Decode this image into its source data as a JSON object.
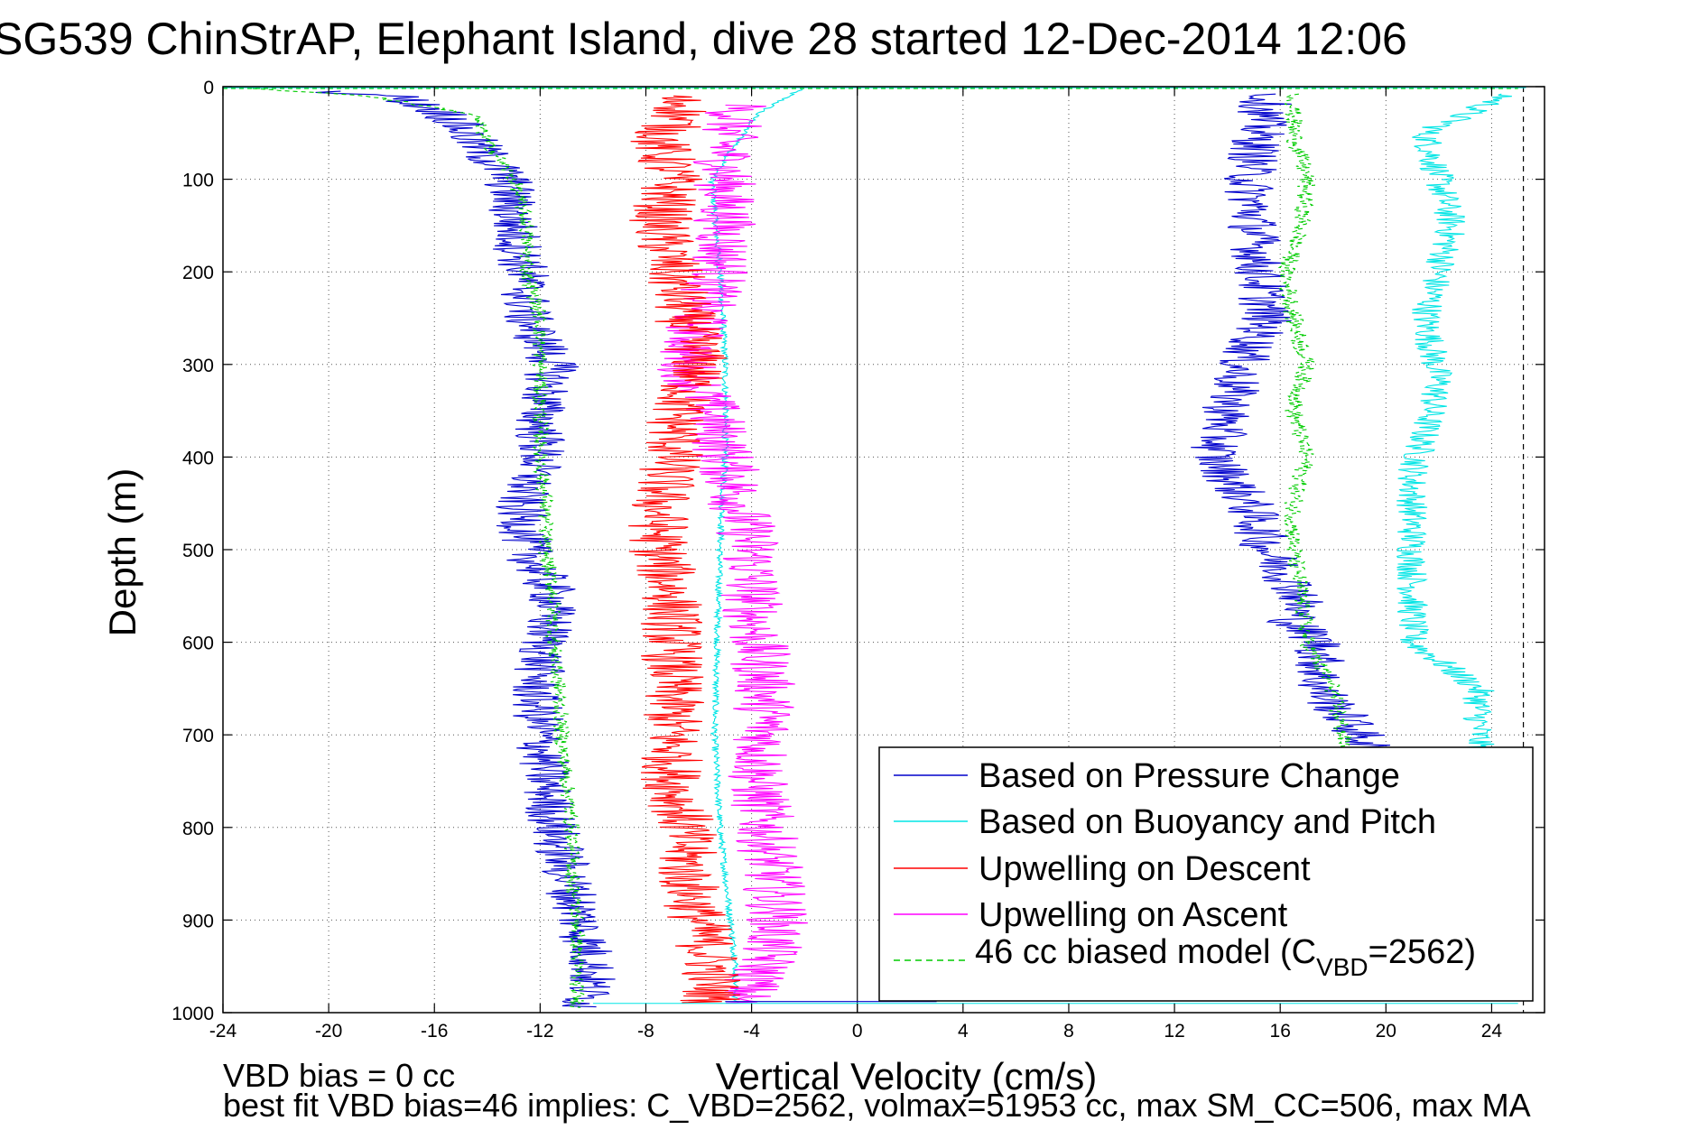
{
  "chart_data": {
    "type": "line",
    "title": "SG539 ChinStrAP, Elephant Island, dive 28 started 12-Dec-2014 12:06",
    "xlabel": "Vertical Velocity (cm/s)",
    "ylabel": "Depth (m)",
    "xlim": [
      -24,
      26
    ],
    "ylim": [
      0,
      1000
    ],
    "y_reversed": true,
    "grid": "dotted",
    "xticks": [
      -24,
      -20,
      -16,
      -12,
      -8,
      -4,
      0,
      4,
      8,
      12,
      16,
      20,
      24
    ],
    "yticks": [
      0,
      100,
      200,
      300,
      400,
      500,
      600,
      700,
      800,
      900,
      1000
    ],
    "legend_position": "bottom-right",
    "series": [
      {
        "name": "Based on Pressure Change",
        "color": "#0000cc",
        "depth": [
          0,
          10,
          30,
          60,
          100,
          150,
          200,
          250,
          300,
          350,
          400,
          450,
          500,
          550,
          600,
          650,
          700,
          750,
          800,
          850,
          900,
          950,
          990
        ],
        "descent": [
          -23,
          -17.5,
          -15.5,
          -14.5,
          -13.2,
          -13.0,
          -12.6,
          -12.5,
          -11.5,
          -12.0,
          -12.0,
          -12.8,
          -12.5,
          -11.5,
          -11.8,
          -12.2,
          -12.0,
          -11.8,
          -11.5,
          -11.0,
          -10.5,
          -10.0,
          -10.3
        ],
        "ascent": [
          15.5,
          15.2,
          14.8,
          15.0,
          15.2,
          15.5,
          14.5,
          14.0,
          13.5,
          14.8,
          15.5,
          16.8,
          16.5,
          17.5,
          17.5,
          19.0,
          19.5
        ],
        "ascent_depth": [
          10,
          50,
          100,
          150,
          200,
          250,
          300,
          350,
          400,
          450,
          500,
          550,
          580,
          600,
          650,
          700,
          720
        ]
      },
      {
        "name": "Based on Buoyancy and Pitch",
        "color": "#00e5e5",
        "depth": [
          0,
          30,
          100,
          200,
          300,
          400,
          500,
          600,
          700,
          800,
          900,
          950,
          990
        ],
        "descent": [
          -2.0,
          -3.8,
          -5.5,
          -5.2,
          -5.0,
          -5.0,
          -5.2,
          -5.3,
          -5.4,
          -5.2,
          -4.8,
          -4.6,
          -4.6
        ],
        "ascent": [
          24.5,
          21.5,
          22.5,
          21.5,
          22.0,
          21.0,
          21.0,
          21.0,
          23.5,
          23.5
        ],
        "ascent_depth": [
          10,
          50,
          150,
          250,
          320,
          420,
          500,
          600,
          650,
          720
        ]
      },
      {
        "name": "Upwelling on Descent",
        "color": "#ff0000",
        "depth": [
          0,
          20,
          60,
          100,
          150,
          200,
          250,
          300,
          350,
          400,
          450,
          500,
          550,
          600,
          650,
          700,
          750,
          800,
          850,
          900,
          950,
          990
        ],
        "values": [
          -8.0,
          -6.5,
          -7.5,
          -7.0,
          -7.5,
          -7.0,
          -6.5,
          -6.0,
          -6.8,
          -7.0,
          -7.5,
          -7.5,
          -7.0,
          -7.0,
          -7.0,
          -7.0,
          -7.0,
          -6.5,
          -6.5,
          -6.0,
          -5.5,
          -5.5
        ]
      },
      {
        "name": "Upwelling on Ascent",
        "color": "#ff00ff",
        "depth": [
          20,
          60,
          100,
          150,
          200,
          250,
          300,
          350,
          400,
          450,
          500,
          550,
          600,
          650,
          700,
          750,
          800,
          850,
          900,
          950,
          990
        ],
        "values": [
          -4.5,
          -5.0,
          -5.0,
          -5.0,
          -5.2,
          -6.0,
          -6.5,
          -5.5,
          -5.0,
          -4.5,
          -4.0,
          -4.0,
          -3.8,
          -3.5,
          -3.5,
          -3.8,
          -3.5,
          -3.2,
          -3.0,
          -3.5,
          -4.5
        ]
      },
      {
        "name": "46 cc biased model (C_VBD=2562)",
        "label_main": "46 cc biased model (C",
        "label_sub": "VBD",
        "label_tail": "=2562)",
        "color": "#00cc00",
        "style": "dashed",
        "depth": [
          0,
          10,
          30,
          60,
          100,
          150,
          200,
          250,
          300,
          350,
          400,
          450,
          500,
          550,
          600,
          650,
          700,
          750,
          800,
          850,
          900,
          950,
          990
        ],
        "descent": [
          -24,
          -18.5,
          -14.5,
          -14.0,
          -13.0,
          -12.5,
          -12.5,
          -12.0,
          -12.0,
          -12.0,
          -12.0,
          -11.8,
          -11.8,
          -11.5,
          -11.5,
          -11.3,
          -11.2,
          -11.0,
          -10.8,
          -10.8,
          -10.6,
          -10.6,
          -10.6
        ],
        "ascent": [
          16.5,
          16.5,
          17.0,
          16.8,
          16.2,
          16.5,
          17.0,
          16.5,
          17.0,
          16.5,
          16.5,
          16.8,
          17.0,
          18.0,
          18.5
        ],
        "ascent_depth": [
          10,
          50,
          100,
          150,
          200,
          250,
          300,
          350,
          400,
          450,
          500,
          550,
          600,
          650,
          720
        ]
      }
    ],
    "reference_lines": {
      "zero_x": 0,
      "dashed_x": 25.2
    }
  },
  "footer": {
    "line1": "VBD bias = 0 cc",
    "line2": "best fit VBD bias=46 implies: C_VBD=2562, volmax=51953 cc, max SM_CC=506, max MA"
  }
}
